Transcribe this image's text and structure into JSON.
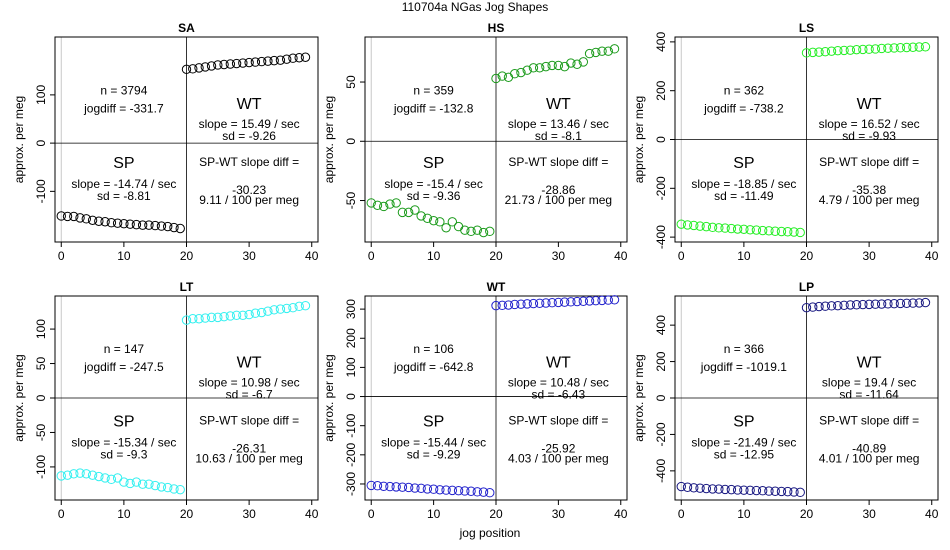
{
  "title": "110704a   NGas Jog Shapes",
  "xlabel": "jog position",
  "ylabel": "approx. per meg",
  "chart_data": [
    {
      "type": "scatter",
      "title": "SA",
      "color": "#000000",
      "xlim": [
        -1,
        41
      ],
      "ylim": [
        -205,
        220
      ],
      "xticks": [
        0,
        10,
        20,
        30,
        40
      ],
      "yticks": [
        -100,
        0,
        100
      ],
      "x": [
        0,
        1,
        2,
        3,
        4,
        5,
        6,
        7,
        8,
        9,
        10,
        11,
        12,
        13,
        14,
        15,
        16,
        17,
        18,
        19,
        20,
        21,
        22,
        23,
        24,
        25,
        26,
        27,
        28,
        29,
        30,
        31,
        32,
        33,
        34,
        35,
        36,
        37,
        38,
        39
      ],
      "y": [
        -151,
        -152,
        -152,
        -155,
        -157,
        -160,
        -162,
        -163,
        -165,
        -166,
        -167,
        -168,
        -169,
        -170,
        -170,
        -171,
        -172,
        -173,
        -175,
        -177,
        153,
        154,
        156,
        158,
        160,
        162,
        163,
        164,
        165,
        166,
        167,
        168,
        169,
        170,
        171,
        172,
        174,
        176,
        177,
        178
      ],
      "stats": {
        "n": "n = 3794",
        "jogdiff": "jogdiff = -331.7",
        "wt_label": "WT",
        "wt_slope": "slope = 15.49 / sec",
        "wt_sd": "sd = -9.26",
        "sp_label": "SP",
        "sp_slope": "slope = -14.74 / sec",
        "sp_sd": "sd = -8.81",
        "diff_title": "SP-WT slope diff =",
        "diff_value": "-30.23",
        "diff_norm": "9.11 / 100 per meg"
      }
    },
    {
      "type": "scatter",
      "title": "HS",
      "color": "#1a9a1a",
      "xlim": [
        -1,
        41
      ],
      "ylim": [
        -85,
        88
      ],
      "xticks": [
        0,
        10,
        20,
        30,
        40
      ],
      "yticks": [
        -50,
        0,
        50
      ],
      "x": [
        0,
        1,
        2,
        3,
        4,
        5,
        6,
        7,
        8,
        9,
        10,
        11,
        12,
        13,
        14,
        15,
        16,
        17,
        18,
        19,
        20,
        21,
        22,
        23,
        24,
        25,
        26,
        27,
        28,
        29,
        30,
        31,
        32,
        33,
        34,
        35,
        36,
        37,
        38,
        39
      ],
      "y": [
        -52,
        -54,
        -55,
        -53,
        -52,
        -60,
        -60,
        -58,
        -63,
        -65,
        -67,
        -68,
        -73,
        -68,
        -72,
        -75,
        -76,
        -75,
        -77,
        -76,
        53,
        55,
        54,
        57,
        58,
        60,
        62,
        62,
        63,
        64,
        64,
        63,
        66,
        65,
        67,
        74,
        75,
        76,
        76,
        78
      ],
      "stats": {
        "n": "n = 359",
        "jogdiff": "jogdiff = -132.8",
        "wt_label": "WT",
        "wt_slope": "slope = 13.46 / sec",
        "wt_sd": "sd = -8.1",
        "sp_label": "SP",
        "sp_slope": "slope = -15.4 / sec",
        "sp_sd": "sd = -9.36",
        "diff_title": "SP-WT slope diff =",
        "diff_value": "-28.86",
        "diff_norm": "21.73 / 100 per meg"
      }
    },
    {
      "type": "scatter",
      "title": "LS",
      "color": "#22ee22",
      "xlim": [
        -1,
        41
      ],
      "ylim": [
        -420,
        420
      ],
      "xticks": [
        0,
        10,
        20,
        30,
        40
      ],
      "yticks": [
        -400,
        -200,
        0,
        200,
        400
      ],
      "x": [
        0,
        1,
        2,
        3,
        4,
        5,
        6,
        7,
        8,
        9,
        10,
        11,
        12,
        13,
        14,
        15,
        16,
        17,
        18,
        19,
        20,
        21,
        22,
        23,
        24,
        25,
        26,
        27,
        28,
        29,
        30,
        31,
        32,
        33,
        34,
        35,
        36,
        37,
        38,
        39
      ],
      "y": [
        -347,
        -350,
        -352,
        -355,
        -357,
        -360,
        -362,
        -363,
        -365,
        -367,
        -368,
        -370,
        -371,
        -373,
        -374,
        -376,
        -377,
        -378,
        -379,
        -381,
        355,
        357,
        358,
        360,
        362,
        364,
        365,
        366,
        368,
        369,
        370,
        371,
        373,
        374,
        375,
        376,
        377,
        378,
        379,
        380
      ],
      "stats": {
        "n": "n = 362",
        "jogdiff": "jogdiff = -738.2",
        "wt_label": "WT",
        "wt_slope": "slope = 16.52 / sec",
        "wt_sd": "sd = -9.93",
        "sp_label": "SP",
        "sp_slope": "slope = -18.85 / sec",
        "sp_sd": "sd = -11.49",
        "diff_title": "SP-WT slope diff =",
        "diff_value": "-35.38",
        "diff_norm": "4.79 / 100 per meg"
      }
    },
    {
      "type": "scatter",
      "title": "LT",
      "color": "#33f0f0",
      "xlim": [
        -1,
        41
      ],
      "ylim": [
        -148,
        148
      ],
      "xticks": [
        0,
        10,
        20,
        30,
        40
      ],
      "yticks": [
        -100,
        -50,
        0,
        50,
        100
      ],
      "x": [
        0,
        1,
        2,
        3,
        4,
        5,
        6,
        7,
        8,
        9,
        10,
        11,
        12,
        13,
        14,
        15,
        16,
        17,
        18,
        19,
        20,
        21,
        22,
        23,
        24,
        25,
        26,
        27,
        28,
        29,
        30,
        31,
        32,
        33,
        34,
        35,
        36,
        37,
        38,
        39
      ],
      "y": [
        -113,
        -112,
        -110,
        -109,
        -110,
        -112,
        -114,
        -116,
        -118,
        -116,
        -122,
        -124,
        -122,
        -125,
        -125,
        -127,
        -129,
        -130,
        -132,
        -133,
        113,
        115,
        115,
        116,
        117,
        117,
        118,
        119,
        120,
        120,
        121,
        123,
        124,
        126,
        128,
        129,
        130,
        131,
        133,
        134
      ],
      "stats": {
        "n": "n = 147",
        "jogdiff": "jogdiff = -247.5",
        "wt_label": "WT",
        "wt_slope": "slope = 10.98 / sec",
        "wt_sd": "sd = -6.7",
        "sp_label": "SP",
        "sp_slope": "slope = -15.34 / sec",
        "sp_sd": "sd = -9.3",
        "diff_title": "SP-WT slope diff =",
        "diff_value": "-26.31",
        "diff_norm": "10.63 / 100 per meg"
      }
    },
    {
      "type": "scatter",
      "title": "WT",
      "color": "#2222cc",
      "xlim": [
        -1,
        41
      ],
      "ylim": [
        -355,
        345
      ],
      "xticks": [
        0,
        10,
        20,
        30,
        40
      ],
      "yticks": [
        -300,
        -200,
        -100,
        0,
        100,
        200,
        300
      ],
      "x": [
        0,
        1,
        2,
        3,
        4,
        5,
        6,
        7,
        8,
        9,
        10,
        11,
        12,
        13,
        14,
        15,
        16,
        17,
        18,
        19,
        20,
        21,
        22,
        23,
        24,
        25,
        26,
        27,
        28,
        29,
        30,
        31,
        32,
        33,
        34,
        35,
        36,
        37,
        38,
        39
      ],
      "y": [
        -305,
        -306,
        -308,
        -309,
        -310,
        -311,
        -312,
        -314,
        -315,
        -317,
        -318,
        -320,
        -321,
        -322,
        -323,
        -324,
        -325,
        -327,
        -328,
        -330,
        312,
        313,
        314,
        316,
        317,
        318,
        319,
        320,
        321,
        322,
        323,
        324,
        325,
        326,
        327,
        328,
        329,
        330,
        331,
        332
      ],
      "stats": {
        "n": "n = 106",
        "jogdiff": "jogdiff = -642.8",
        "wt_label": "WT",
        "wt_slope": "slope = 10.48 / sec",
        "wt_sd": "sd = -6.43",
        "sp_label": "SP",
        "sp_slope": "slope = -15.44 / sec",
        "sp_sd": "sd = -9.29",
        "diff_title": "SP-WT slope diff =",
        "diff_value": "-25.92",
        "diff_norm": "4.03 / 100 per meg"
      }
    },
    {
      "type": "scatter",
      "title": "LP",
      "color": "#161680",
      "xlim": [
        -1,
        41
      ],
      "ylim": [
        -560,
        560
      ],
      "xticks": [
        0,
        10,
        20,
        30,
        40
      ],
      "yticks": [
        -400,
        -200,
        0,
        200,
        400
      ],
      "x": [
        0,
        1,
        2,
        3,
        4,
        5,
        6,
        7,
        8,
        9,
        10,
        11,
        12,
        13,
        14,
        15,
        16,
        17,
        18,
        19,
        20,
        21,
        22,
        23,
        24,
        25,
        26,
        27,
        28,
        29,
        30,
        31,
        32,
        33,
        34,
        35,
        36,
        37,
        38,
        39
      ],
      "y": [
        -486,
        -490,
        -493,
        -495,
        -497,
        -499,
        -500,
        -502,
        -503,
        -505,
        -506,
        -507,
        -508,
        -509,
        -511,
        -512,
        -513,
        -514,
        -516,
        -518,
        496,
        499,
        502,
        504,
        506,
        507,
        509,
        511,
        512,
        513,
        514,
        515,
        516,
        517,
        518,
        519,
        520,
        521,
        522,
        524
      ],
      "stats": {
        "n": "n = 366",
        "jogdiff": "jogdiff = -1019.1",
        "wt_label": "WT",
        "wt_slope": "slope = 19.4 / sec",
        "wt_sd": "sd = -11.64",
        "sp_label": "SP",
        "sp_slope": "slope = -21.49 / sec",
        "sp_sd": "sd = -12.95",
        "diff_title": "SP-WT slope diff =",
        "diff_value": "-40.89",
        "diff_norm": "4.01 / 100 per meg"
      }
    }
  ]
}
